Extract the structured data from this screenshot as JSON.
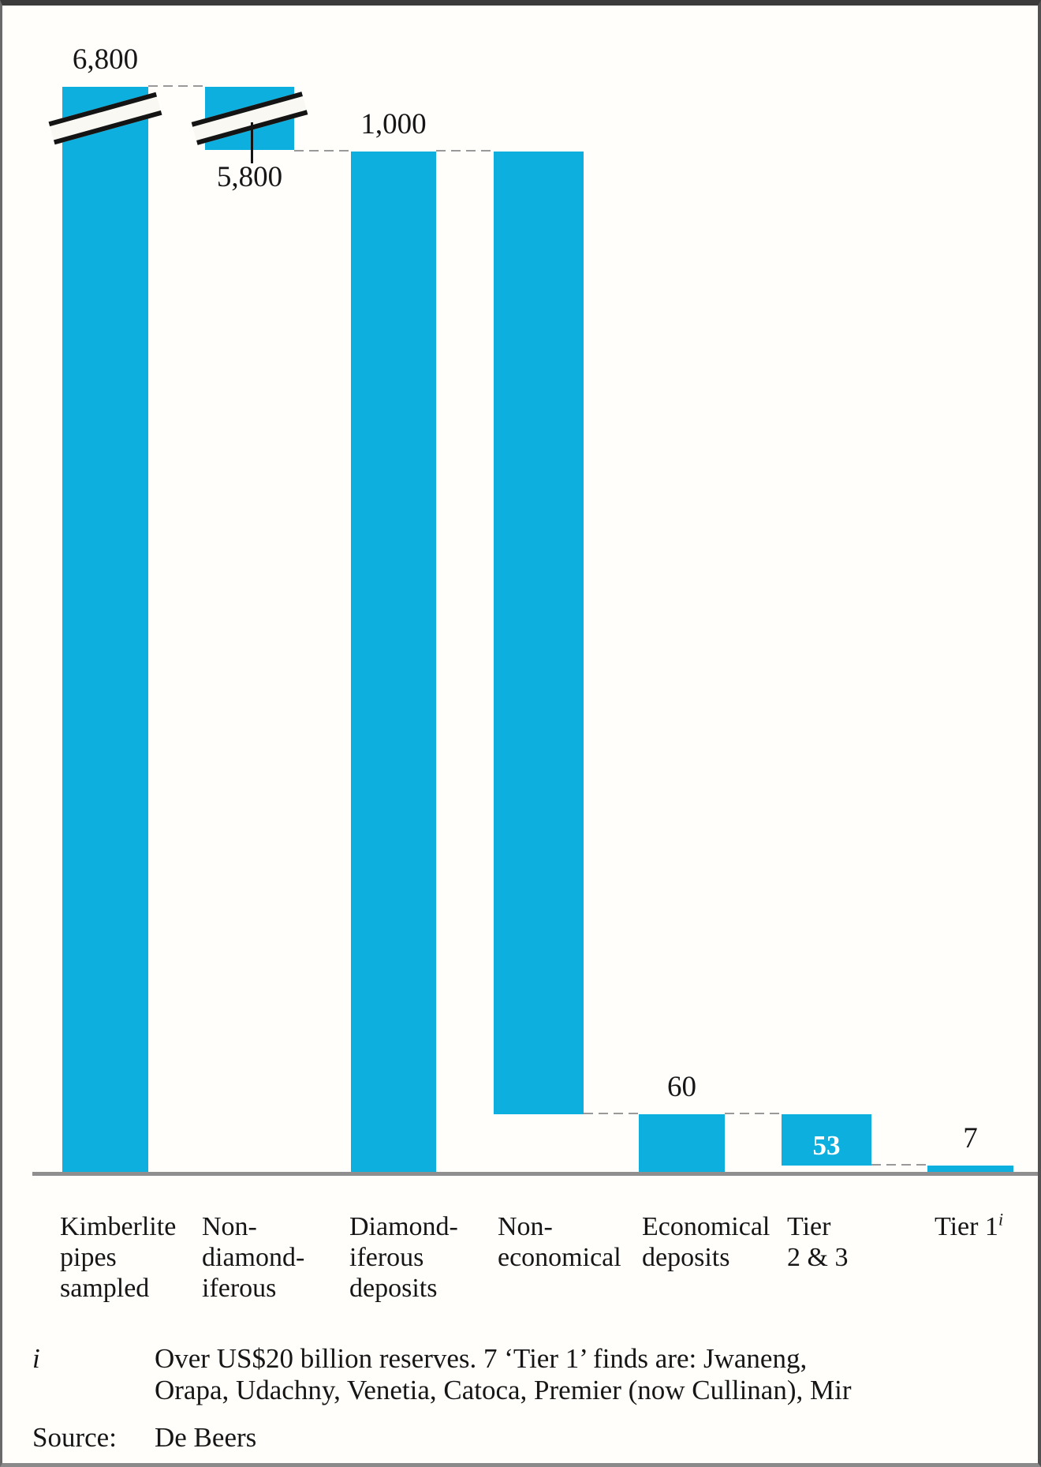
{
  "chart_data": {
    "type": "bar",
    "subtype": "waterfall-funnel",
    "title": "",
    "xlabel": "",
    "ylabel": "",
    "grid": false,
    "legend": false,
    "axis_note": "y-axis has a break between 1,000 and the 5,800/6,800 tops, marked by diagonal break bars on the first two columns",
    "bar_color": "#0CAFDE",
    "baseline_color": "#8f8f8f",
    "connector_color": "#999999",
    "categories": [
      "Kimberlite pipes sampled",
      "Non-diamond-iferous",
      "Diamond-iferous deposits",
      "Non-economical",
      "Economical deposits",
      "Tier 2 & 3",
      "Tier 1"
    ],
    "values": [
      6800,
      5800,
      1000,
      940,
      60,
      53,
      7
    ],
    "bars": [
      {
        "name": "kimberlite-pipes-sampled",
        "label_lines": "Kimberlite\npipes\nsampled",
        "value": 6800,
        "value_label": "6,800",
        "label_pos": "above",
        "axis_break": true,
        "span": [
          0,
          6800
        ]
      },
      {
        "name": "non-diamondiferous",
        "label_lines": "Non-\ndiamond-\niferous",
        "value": 5800,
        "value_label": "5,800",
        "label_pos": "below-leader",
        "axis_break": true,
        "span": [
          1000,
          6800
        ]
      },
      {
        "name": "diamondiferous-deposits",
        "label_lines": "Diamond-\niferous\ndeposits",
        "value": 1000,
        "value_label": "1,000",
        "label_pos": "above",
        "axis_break": false,
        "span": [
          0,
          1000
        ]
      },
      {
        "name": "non-economical",
        "label_lines": "Non-\neconomical",
        "value": 940,
        "value_label": "",
        "label_pos": "none",
        "axis_break": false,
        "span": [
          60,
          1000
        ]
      },
      {
        "name": "economical-deposits",
        "label_lines": "Economical\ndeposits",
        "value": 60,
        "value_label": "60",
        "label_pos": "above",
        "axis_break": false,
        "span": [
          0,
          60
        ]
      },
      {
        "name": "tier-2-and-3",
        "label_lines": "Tier\n2 & 3",
        "value": 53,
        "value_label": "53",
        "label_pos": "inside",
        "axis_break": false,
        "span": [
          7,
          60
        ]
      },
      {
        "name": "tier-1",
        "label_lines": "Tier 1",
        "label_superscript": "i",
        "value": 7,
        "value_label": "7",
        "label_pos": "above",
        "axis_break": false,
        "span": [
          0,
          7
        ]
      }
    ]
  },
  "footnote": {
    "marker": "i",
    "lines": {
      "0": "Over US$20 billion reserves. 7 ‘Tier 1’ finds are: Jwaneng,",
      "1": "Orapa, Udachny, Venetia, Catoca, Premier (now Cullinan), Mir"
    }
  },
  "source": {
    "label": "Source:",
    "value": "De Beers"
  }
}
